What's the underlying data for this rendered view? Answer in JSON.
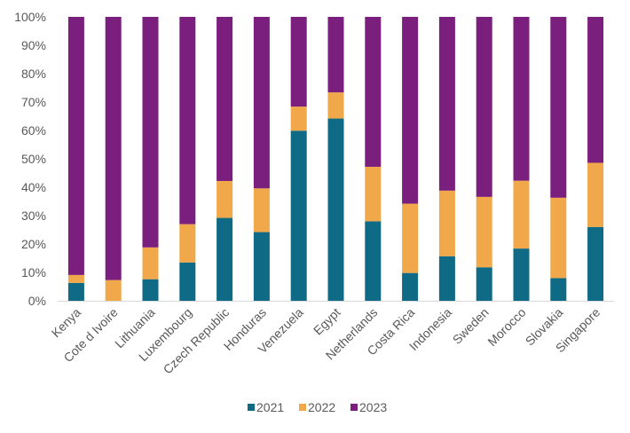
{
  "chart_data": {
    "type": "bar",
    "stacked": true,
    "percent": true,
    "title": "",
    "xlabel": "",
    "ylabel": "",
    "ylim": [
      0,
      100
    ],
    "yticks": [
      0,
      10,
      20,
      30,
      40,
      50,
      60,
      70,
      80,
      90,
      100
    ],
    "ytick_labels": [
      "0%",
      "10%",
      "20%",
      "30%",
      "40%",
      "50%",
      "60%",
      "70%",
      "80%",
      "90%",
      "100%"
    ],
    "grid": false,
    "legend_position": "bottom",
    "categories": [
      "Kenya",
      "Cote d Ivoire",
      "Lithuania",
      "Luxembourg",
      "Czech Republic",
      "Honduras",
      "Venezuela",
      "Egypt",
      "Netherlands",
      "Costa Rica",
      "Indonesia",
      "Sweden",
      "Morocco",
      "Slovakia",
      "Singapore"
    ],
    "series": [
      {
        "name": "2021",
        "color": "#0e6a85",
        "values": [
          6.3,
          0.0,
          7.6,
          13.5,
          29.2,
          24.2,
          59.9,
          64.2,
          28.0,
          9.8,
          15.7,
          11.8,
          18.4,
          8.0,
          26.0
        ]
      },
      {
        "name": "2022",
        "color": "#f0a84a",
        "values": [
          2.8,
          7.3,
          11.2,
          13.5,
          13.0,
          15.4,
          8.5,
          9.2,
          19.2,
          24.4,
          23.1,
          24.8,
          23.9,
          28.3,
          22.6
        ]
      },
      {
        "name": "2023",
        "color": "#7a1f7e",
        "values": [
          90.9,
          92.7,
          81.2,
          73.0,
          57.8,
          60.4,
          31.6,
          26.6,
          52.8,
          65.8,
          61.2,
          63.4,
          57.7,
          63.7,
          51.4
        ]
      }
    ]
  }
}
